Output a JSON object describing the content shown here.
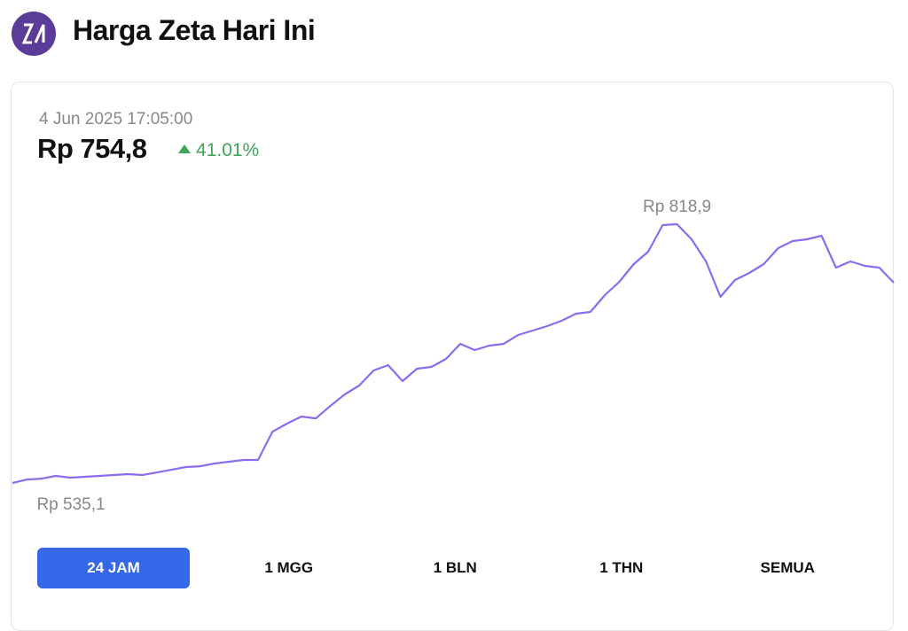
{
  "header": {
    "title": "Harga Zeta Hari Ini"
  },
  "price_card": {
    "timestamp": "4 Jun 2025 17:05:00",
    "price": "Rp 754,8",
    "change": "41.01%"
  },
  "chart_data": {
    "type": "line",
    "color": "#8b6cf0",
    "values": [
      535.1,
      538.9,
      539.9,
      542.9,
      540.9,
      541.9,
      542.9,
      543.8,
      544.8,
      543.8,
      546.7,
      549.6,
      552.6,
      553.5,
      556.5,
      558.4,
      560.4,
      560.4,
      591.4,
      600.2,
      608.0,
      606.0,
      619.6,
      632.3,
      642.0,
      658.5,
      664.4,
      646.9,
      660.5,
      662.4,
      671.2,
      687.7,
      680.9,
      685.7,
      687.7,
      697.4,
      702.3,
      707.1,
      713.0,
      720.7,
      722.7,
      741.1,
      755.7,
      775.2,
      788.8,
      817.9,
      818.9,
      802.4,
      778.1,
      739.2,
      757.7,
      765.4,
      775.2,
      792.7,
      800.4,
      802.4,
      806.3,
      771.3,
      778.1,
      773.2,
      771.3,
      754.8
    ],
    "annotations": [
      {
        "value": 818.9,
        "label": "Rp 818,9"
      },
      {
        "value": 535.1,
        "label": "Rp 535,1"
      }
    ]
  },
  "tabs": [
    "24 JAM",
    "1 MGG",
    "1 BLN",
    "1 THN",
    "SEMUA"
  ]
}
